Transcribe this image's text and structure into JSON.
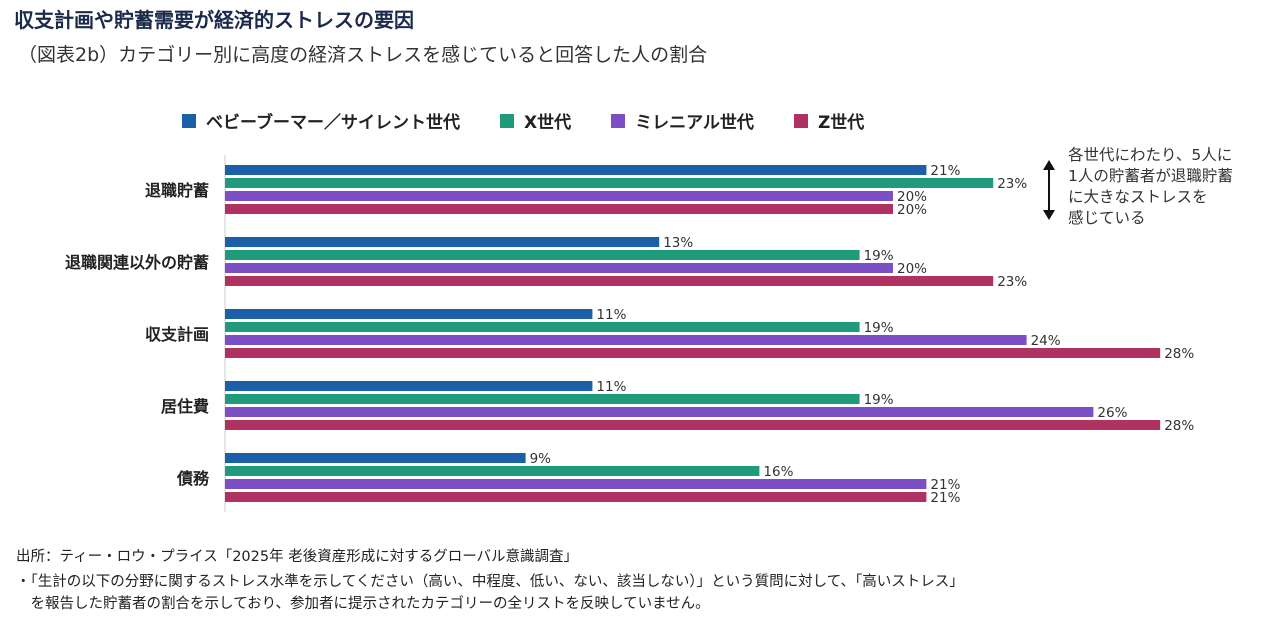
{
  "title": "収支計画や貯蓄需要が経済的ストレスの要因",
  "subtitle": "（図表2b）カテゴリー別に高度の経済ストレスを感じていると回答した人の割合",
  "annotation": [
    "各世代にわたり、5人に",
    "1人の貯蓄者が退職貯蓄",
    "に大きなストレスを",
    "感じている"
  ],
  "footnotes": [
    "出所：ティー・ロウ・プライス「2025年 老後資産形成に対するグローバル意識調査」",
    "・「生計の以下の分野に関するストレス水準を示してください（高い、中程度、低い、ない、該当しない）」という質問に対して、「高いストレス」",
    "　を報告した貯蓄者の割合を示しており、参加者に提示されたカテゴリーの全リストを反映していません。"
  ],
  "chart_data": {
    "type": "bar",
    "orientation": "horizontal",
    "legend_position": "top",
    "grid": false,
    "categories": [
      "退職貯蓄",
      "退職関連以外の貯蓄",
      "収支計画",
      "居住費",
      "債務"
    ],
    "series": [
      {
        "name": "ベビーブーマー／サイレント世代",
        "color": "#1a5fa8",
        "values": [
          21,
          13,
          11,
          11,
          9
        ]
      },
      {
        "name": "X世代",
        "color": "#1f9a7a",
        "values": [
          23,
          19,
          19,
          19,
          16
        ]
      },
      {
        "name": "ミレニアル世代",
        "color": "#7d4fc4",
        "values": [
          20,
          20,
          24,
          26,
          21
        ]
      },
      {
        "name": "Z世代",
        "color": "#b03262",
        "values": [
          20,
          23,
          28,
          28,
          21
        ]
      }
    ],
    "value_suffix": "%"
  }
}
